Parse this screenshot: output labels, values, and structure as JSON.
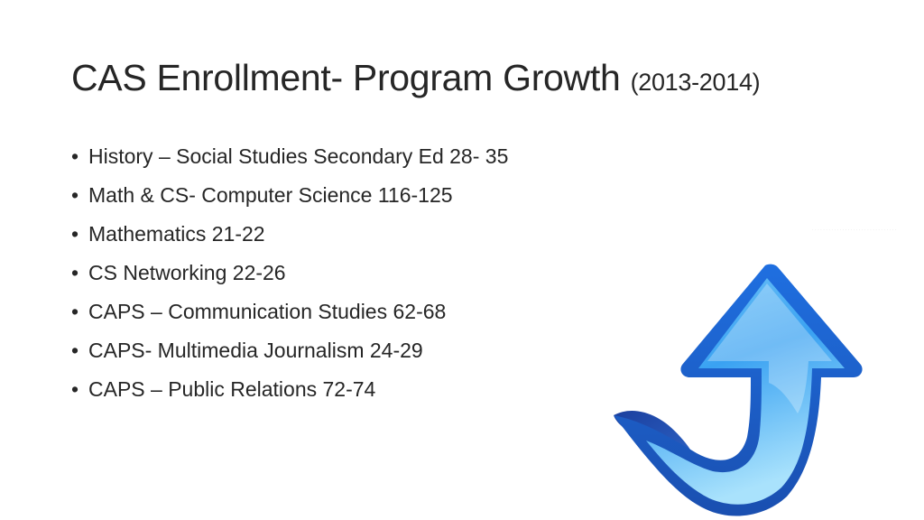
{
  "slide": {
    "title": "CAS Enrollment- Program Growth",
    "title_suffix": "(2013-2014)",
    "bullet_glyph": "•",
    "bullets": [
      "History – Social Studies Secondary Ed 28- 35",
      "Math & CS- Computer Science 116-125",
      "Mathematics 21-22",
      "CS Networking 22-26",
      "CAPS – Communication Studies 62-68",
      "CAPS- Multimedia Journalism 24-29",
      "CAPS – Public Relations 72-74"
    ],
    "image": {
      "icon": "up-arrow-icon",
      "colors": {
        "outline": "#1f4fb8",
        "fill_light": "#9fdcfb",
        "fill_dark": "#1f8ef0"
      }
    }
  }
}
